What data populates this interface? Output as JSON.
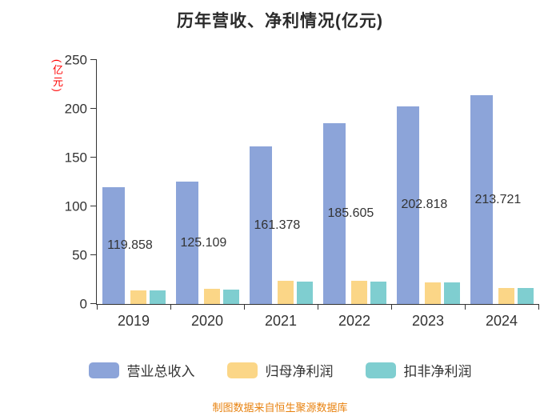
{
  "title": "历年营收、净利情况(亿元)",
  "y_axis": {
    "unit_label": "(亿元)"
  },
  "footer": "制图数据来自恒生聚源数据库",
  "colors": {
    "revenue": "#8ca4d9",
    "net_profit": "#fbd687",
    "non_gaap_profit": "#7fced0",
    "axis": "#333333",
    "unit_label": "#ff0000",
    "footer_text": "#e8820f"
  },
  "chart_data": {
    "type": "bar",
    "title": "历年营收、净利情况(亿元)",
    "categories": [
      "2019",
      "2020",
      "2021",
      "2022",
      "2023",
      "2024"
    ],
    "series": [
      {
        "key": "revenue",
        "name": "营业总收入",
        "color": "#8ca4d9",
        "show_labels": true,
        "values": [
          119.858,
          125.109,
          161.378,
          185.605,
          202.818,
          213.721
        ]
      },
      {
        "key": "net-profit",
        "name": "归母净利润",
        "color": "#fbd687",
        "show_labels": false,
        "values": [
          14.2,
          15.3,
          23.4,
          23.5,
          22.3,
          16.6
        ]
      },
      {
        "key": "non-gaap-profit",
        "name": "扣非净利润",
        "color": "#7fced0",
        "show_labels": false,
        "values": [
          13.9,
          15.0,
          23.2,
          23.3,
          22.1,
          16.4
        ]
      }
    ],
    "ylabel": "(亿元)",
    "ylim": [
      0,
      250
    ],
    "yticks": [
      0,
      50,
      100,
      150,
      200,
      250
    ],
    "grid": false,
    "legend_position": "bottom",
    "source_note": "制图数据来自恒生聚源数据库"
  }
}
